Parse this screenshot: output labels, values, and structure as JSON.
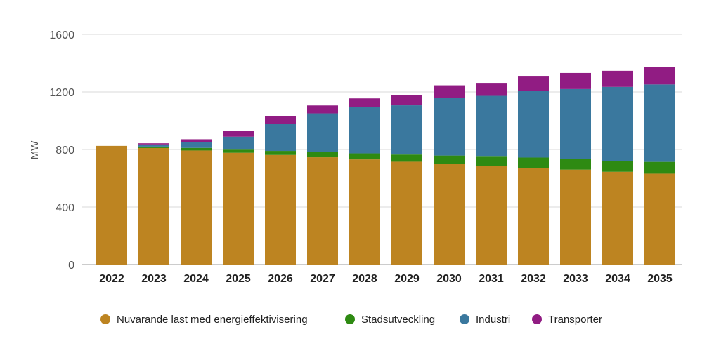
{
  "chart_data": {
    "type": "bar",
    "stacked": true,
    "categories": [
      "2022",
      "2023",
      "2024",
      "2025",
      "2026",
      "2027",
      "2028",
      "2029",
      "2030",
      "2031",
      "2032",
      "2033",
      "2034",
      "2035"
    ],
    "series": [
      {
        "name": "Nuvarande last med energieffektivisering",
        "color": "#bd8421",
        "values": [
          825,
          810,
          793,
          777,
          762,
          746,
          731,
          715,
          700,
          685,
          672,
          660,
          645,
          632
        ]
      },
      {
        "name": "Stadsutveckling",
        "color": "#2e8a12",
        "values": [
          0,
          10,
          18,
          22,
          28,
          35,
          42,
          50,
          58,
          65,
          72,
          72,
          75,
          82
        ]
      },
      {
        "name": "Industri",
        "color": "#3a789e",
        "values": [
          0,
          15,
          40,
          90,
          190,
          270,
          320,
          342,
          400,
          423,
          465,
          488,
          515,
          538
        ]
      },
      {
        "name": "Transporter",
        "color": "#911c83",
        "values": [
          0,
          8,
          20,
          38,
          50,
          55,
          62,
          72,
          88,
          90,
          98,
          112,
          112,
          123
        ]
      }
    ],
    "ylabel": "MW",
    "yticks": [
      0,
      400,
      800,
      1200,
      1600
    ],
    "ylim": [
      0,
      1600
    ],
    "grid": true,
    "legend": "bottom"
  }
}
